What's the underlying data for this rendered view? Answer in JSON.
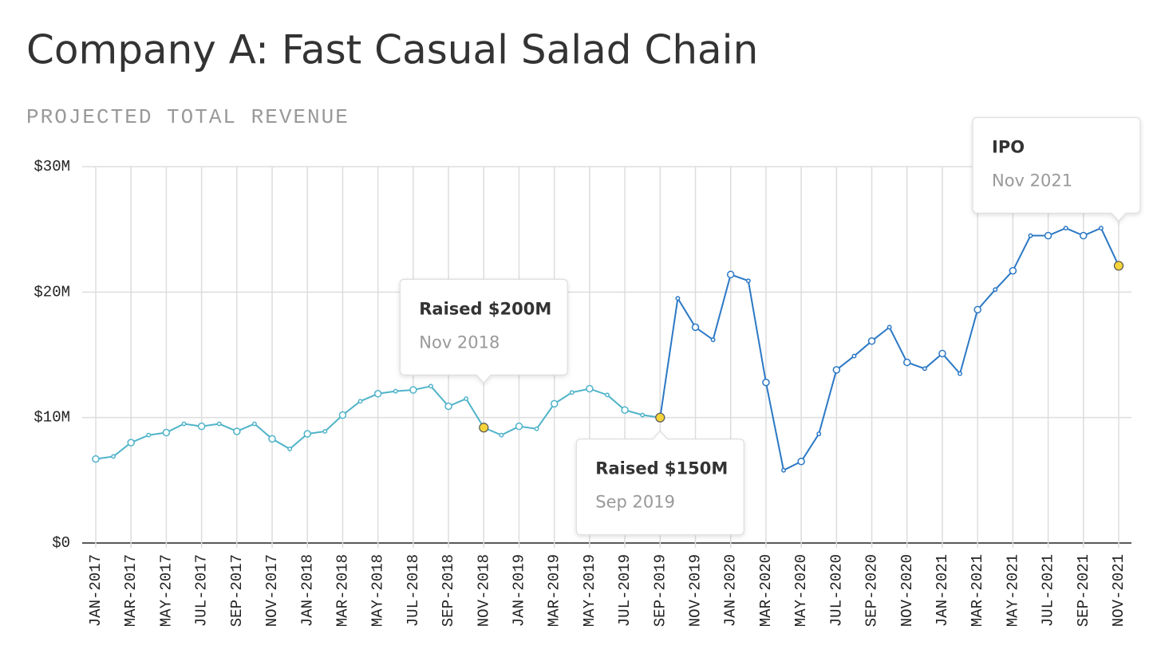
{
  "chart_data": {
    "type": "line",
    "title": "Company A: Fast Casual Salad Chain",
    "subtitle": "PROJECTED TOTAL REVENUE",
    "categories": [
      "JAN-2017",
      null,
      "MAR-2017",
      null,
      "MAY-2017",
      null,
      "JUL-2017",
      null,
      "SEP-2017",
      null,
      "NOV-2017",
      null,
      "JAN-2018",
      null,
      "MAR-2018",
      null,
      "MAY-2018",
      null,
      "JUL-2018",
      null,
      "SEP-2018",
      null,
      "NOV-2018",
      null,
      "JAN-2019",
      null,
      "MAR-2019",
      null,
      "MAY-2019",
      null,
      "JUL-2019",
      null,
      "SEP-2019",
      null,
      "NOV-2019",
      null,
      "JAN-2020",
      null,
      "MAR-2020",
      null,
      "MAY-2020",
      null,
      "JUL-2020",
      null,
      "SEP-2020",
      null,
      "NOV-2020",
      null,
      "JAN-2021",
      null,
      "MAR-2021",
      null,
      "MAY-2021",
      null,
      "JUL-2021",
      null,
      "SEP-2021",
      null,
      "NOV-2021"
    ],
    "series": [
      {
        "color": "#4fb3c9",
        "values": [
          6.7,
          6.9,
          8.0,
          8.6,
          8.8,
          9.5,
          9.3,
          9.5,
          8.9,
          9.5,
          8.3,
          7.5,
          8.7,
          8.9,
          10.2,
          11.3,
          11.9,
          12.1,
          12.2,
          12.5,
          10.9,
          11.5,
          9.2,
          8.6,
          9.3,
          9.1,
          11.1,
          12.0,
          12.3,
          11.8,
          10.6,
          10.2,
          10.0,
          null,
          null,
          null,
          null,
          null,
          null,
          null,
          null,
          null,
          null,
          null,
          null,
          null,
          null,
          null,
          null,
          null,
          null,
          null,
          null,
          null,
          null,
          null,
          null,
          null,
          null
        ]
      },
      {
        "color": "#2b78c5",
        "values": [
          null,
          null,
          null,
          null,
          null,
          null,
          null,
          null,
          null,
          null,
          null,
          null,
          null,
          null,
          null,
          null,
          null,
          null,
          null,
          null,
          null,
          null,
          null,
          null,
          null,
          null,
          null,
          null,
          null,
          null,
          null,
          null,
          10.0,
          19.5,
          17.2,
          16.2,
          21.4,
          20.9,
          12.8,
          5.8,
          6.5,
          8.7,
          13.8,
          14.9,
          16.1,
          17.2,
          14.4,
          13.9,
          15.1,
          13.5,
          18.6,
          20.2,
          21.7,
          24.5,
          24.5,
          25.1,
          24.5,
          25.1,
          22.1
        ]
      }
    ],
    "ylim": [
      0,
      30
    ],
    "yticks": [
      {
        "value": 0,
        "label": "$0"
      },
      {
        "value": 10,
        "label": "$10M"
      },
      {
        "value": 20,
        "label": "$20M"
      },
      {
        "value": 30,
        "label": "$30M"
      }
    ],
    "grid": true,
    "highlight_color": "#f5d33a",
    "annotations": [
      {
        "title": "Raised $200M",
        "date": "Nov 2018"
      },
      {
        "title": "Raised $150M",
        "date": "Sep 2019"
      },
      {
        "title": "IPO",
        "date": "Nov 2021"
      }
    ]
  }
}
